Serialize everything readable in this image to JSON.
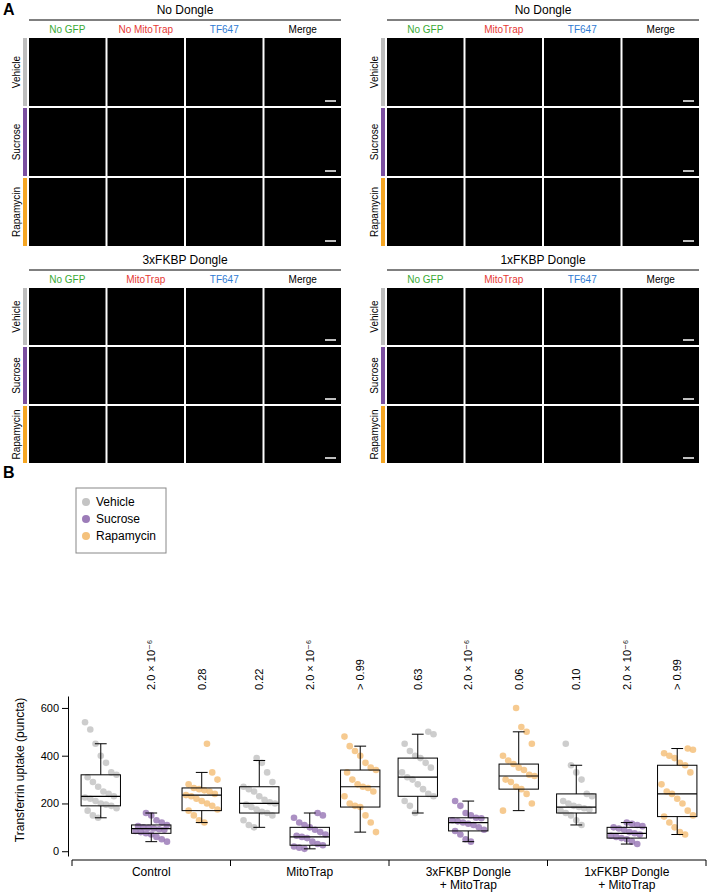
{
  "panel_labels": [
    "A",
    "B"
  ],
  "panel_a": {
    "column_colors": [
      "#3aa935",
      "#e53935",
      "#2f7bd3",
      "#000000"
    ],
    "row_colors": [
      "#bdbdbd",
      "#7b4fa0",
      "#f5a623"
    ],
    "blocks": [
      {
        "title": "No Dongle",
        "columns": [
          "No GFP",
          "No MitoTrap",
          "TF647",
          "Merge"
        ],
        "rows": [
          "Vehicle",
          "Sucrose",
          "Rapamycin"
        ]
      },
      {
        "title": "No Dongle",
        "columns": [
          "No GFP",
          "MitoTrap",
          "TF647",
          "Merge"
        ],
        "rows": [
          "Vehicle",
          "Sucrose",
          "Rapamycin"
        ]
      },
      {
        "title": "3xFKBP Dongle",
        "columns": [
          "No GFP",
          "MitoTrap",
          "TF647",
          "Merge"
        ],
        "rows": [
          "Vehicle",
          "Sucrose",
          "Rapamycin"
        ]
      },
      {
        "title": "1xFKBP Dongle",
        "columns": [
          "No GFP",
          "MitoTrap",
          "TF647",
          "Merge"
        ],
        "rows": [
          "Vehicle",
          "Sucrose",
          "Rapamycin"
        ]
      }
    ]
  },
  "chart_data": {
    "type": "box",
    "y_label": "Transferrin uptake (puncta)",
    "categories": [
      "Control",
      "MitoTrap",
      "3xFKBP Dongle + MitoTrap",
      "1xFKBP Dongle + MitoTrap"
    ],
    "ylim": [
      -20,
      650
    ],
    "yticks": [
      0,
      200,
      400,
      600
    ],
    "legend": "top-left",
    "series": [
      {
        "name": "Vehicle",
        "color": "#c4c4c4",
        "box": [
          [
            140,
            190,
            230,
            320,
            450
          ],
          [
            100,
            160,
            200,
            270,
            380
          ],
          [
            160,
            230,
            310,
            390,
            490
          ],
          [
            110,
            160,
            185,
            240,
            360
          ]
        ],
        "points": [
          [
            540,
            510,
            450,
            400,
            370,
            330,
            320,
            310,
            290,
            270,
            250,
            240,
            230,
            225,
            220,
            210,
            200,
            195,
            190,
            180,
            170,
            150,
            140
          ],
          [
            390,
            370,
            330,
            290,
            270,
            260,
            250,
            230,
            215,
            205,
            200,
            195,
            185,
            175,
            165,
            160,
            150,
            130,
            110,
            100
          ],
          [
            500,
            490,
            450,
            420,
            400,
            390,
            370,
            350,
            330,
            310,
            300,
            280,
            260,
            240,
            230,
            210,
            190,
            160
          ],
          [
            450,
            360,
            330,
            300,
            240,
            230,
            210,
            200,
            190,
            185,
            180,
            175,
            170,
            160,
            150,
            130,
            110
          ]
        ],
        "p_labels": [
          null,
          "0.22",
          "0.63",
          "0.10"
        ]
      },
      {
        "name": "Sucrose",
        "color": "#9c7cb8",
        "box": [
          [
            40,
            75,
            95,
            110,
            160
          ],
          [
            10,
            25,
            60,
            100,
            160
          ],
          [
            40,
            85,
            120,
            140,
            210
          ],
          [
            30,
            55,
            75,
            100,
            120
          ]
        ],
        "points": [
          [
            160,
            150,
            130,
            120,
            110,
            105,
            100,
            98,
            95,
            92,
            90,
            85,
            80,
            75,
            70,
            60,
            50,
            40
          ],
          [
            160,
            150,
            140,
            120,
            110,
            100,
            90,
            80,
            70,
            65,
            60,
            55,
            40,
            30,
            25,
            20,
            15,
            10
          ],
          [
            210,
            190,
            160,
            150,
            140,
            138,
            130,
            125,
            120,
            115,
            110,
            100,
            90,
            85,
            70,
            50,
            40
          ],
          [
            120,
            115,
            110,
            105,
            100,
            95,
            90,
            80,
            75,
            70,
            65,
            60,
            55,
            50,
            40,
            30
          ]
        ],
        "p_labels": [
          "2.0 × 10⁻⁶",
          "2.0 × 10⁻⁶",
          "2.0 × 10⁻⁶",
          "2.0 × 10⁻⁶"
        ]
      },
      {
        "name": "Rapamycin",
        "color": "#f4c17c",
        "box": [
          [
            120,
            170,
            235,
            265,
            330
          ],
          [
            80,
            185,
            270,
            340,
            440
          ],
          [
            170,
            260,
            315,
            365,
            500
          ],
          [
            70,
            145,
            240,
            360,
            430
          ]
        ],
        "points": [
          [
            450,
            330,
            300,
            280,
            265,
            260,
            255,
            250,
            240,
            235,
            230,
            220,
            210,
            200,
            190,
            175,
            170,
            150,
            130,
            120
          ],
          [
            480,
            440,
            420,
            400,
            370,
            350,
            340,
            330,
            300,
            280,
            270,
            265,
            250,
            230,
            200,
            190,
            185,
            150,
            120,
            80
          ],
          [
            600,
            520,
            500,
            450,
            400,
            380,
            365,
            350,
            340,
            320,
            315,
            300,
            290,
            270,
            260,
            240,
            200,
            170
          ],
          [
            430,
            425,
            410,
            400,
            390,
            370,
            360,
            330,
            280,
            250,
            240,
            220,
            200,
            170,
            150,
            145,
            120,
            100,
            80,
            70
          ]
        ],
        "p_labels": [
          "0.28",
          "> 0.99",
          "0.06",
          "> 0.99"
        ]
      }
    ]
  }
}
